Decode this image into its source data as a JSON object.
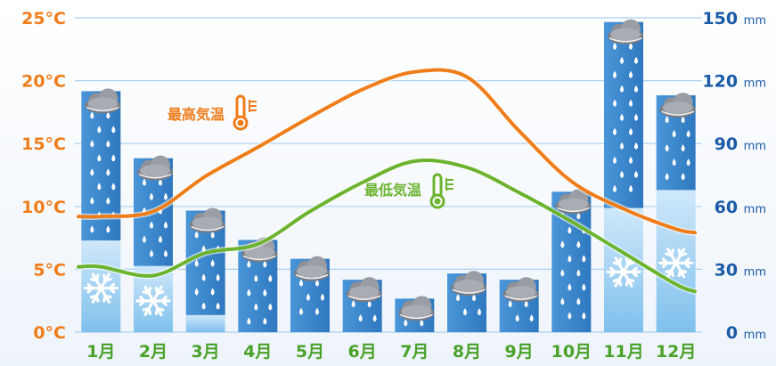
{
  "chart_data": {
    "type": "bar+line",
    "categories": [
      "1月",
      "2月",
      "3月",
      "4月",
      "5月",
      "6月",
      "7月",
      "8月",
      "9月",
      "10月",
      "11月",
      "12月"
    ],
    "precipitation": {
      "unit": "mm",
      "values": [
        115,
        83,
        58,
        44,
        35,
        25,
        16,
        28,
        25,
        67,
        148,
        113
      ],
      "snow_fraction": [
        0.38,
        0.38,
        0.14,
        0,
        0,
        0,
        0,
        0,
        0,
        0,
        0.4,
        0.6
      ],
      "ylim": [
        0,
        150
      ],
      "ticks": [
        0,
        30,
        60,
        90,
        120,
        150
      ]
    },
    "temperature": {
      "unit": "°C",
      "ylim": [
        0,
        25
      ],
      "ticks": [
        0,
        5,
        10,
        15,
        20,
        25
      ],
      "series": [
        {
          "name": "最高気温",
          "values": [
            9.2,
            9.6,
            12.4,
            14.7,
            17.1,
            19.3,
            20.7,
            20.3,
            16.0,
            12.0,
            9.8,
            8.2
          ]
        },
        {
          "name": "最低気温",
          "values": [
            5.2,
            4.5,
            6.3,
            7.0,
            9.6,
            11.9,
            13.6,
            13.1,
            11.1,
            8.8,
            6.3,
            3.8
          ]
        }
      ]
    },
    "colors": {
      "rain_bar": "#3f8bd0",
      "snow_bar": "#b8ddf5",
      "max_line": "#ef7d1a",
      "min_line": "#6cb430",
      "left_axis_text": "#ef7d1a",
      "right_axis_text": "#1a5aa6",
      "month_text": "#4aa22a",
      "grid": "#a8cfee"
    },
    "icons": [
      "rain-cloud-icon",
      "snowflake-icon",
      "thermometer-icon"
    ]
  }
}
